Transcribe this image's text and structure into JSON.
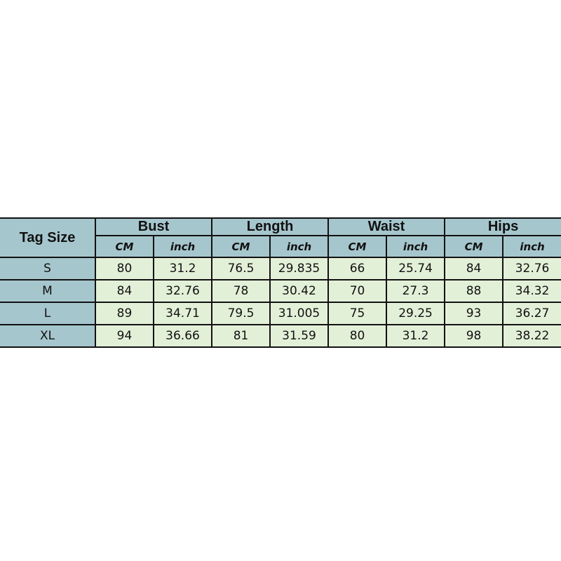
{
  "table": {
    "corner_label": "Tag Size",
    "groups": [
      "Bust",
      "Length",
      "Waist",
      "Hips"
    ],
    "units": [
      "CM",
      "inch"
    ],
    "rows": [
      {
        "size": "S",
        "values": [
          "80",
          "31.2",
          "76.5",
          "29.835",
          "66",
          "25.74",
          "84",
          "32.76"
        ]
      },
      {
        "size": "M",
        "values": [
          "84",
          "32.76",
          "78",
          "30.42",
          "70",
          "27.3",
          "88",
          "34.32"
        ]
      },
      {
        "size": "L",
        "values": [
          "89",
          "34.71",
          "79.5",
          "31.005",
          "75",
          "29.25",
          "93",
          "36.27"
        ]
      },
      {
        "size": "XL",
        "values": [
          "94",
          "36.66",
          "81",
          "31.59",
          "80",
          "31.2",
          "98",
          "38.22"
        ]
      }
    ]
  },
  "colors": {
    "header": "#a6c6cd",
    "cell": "#e3f0d8"
  }
}
